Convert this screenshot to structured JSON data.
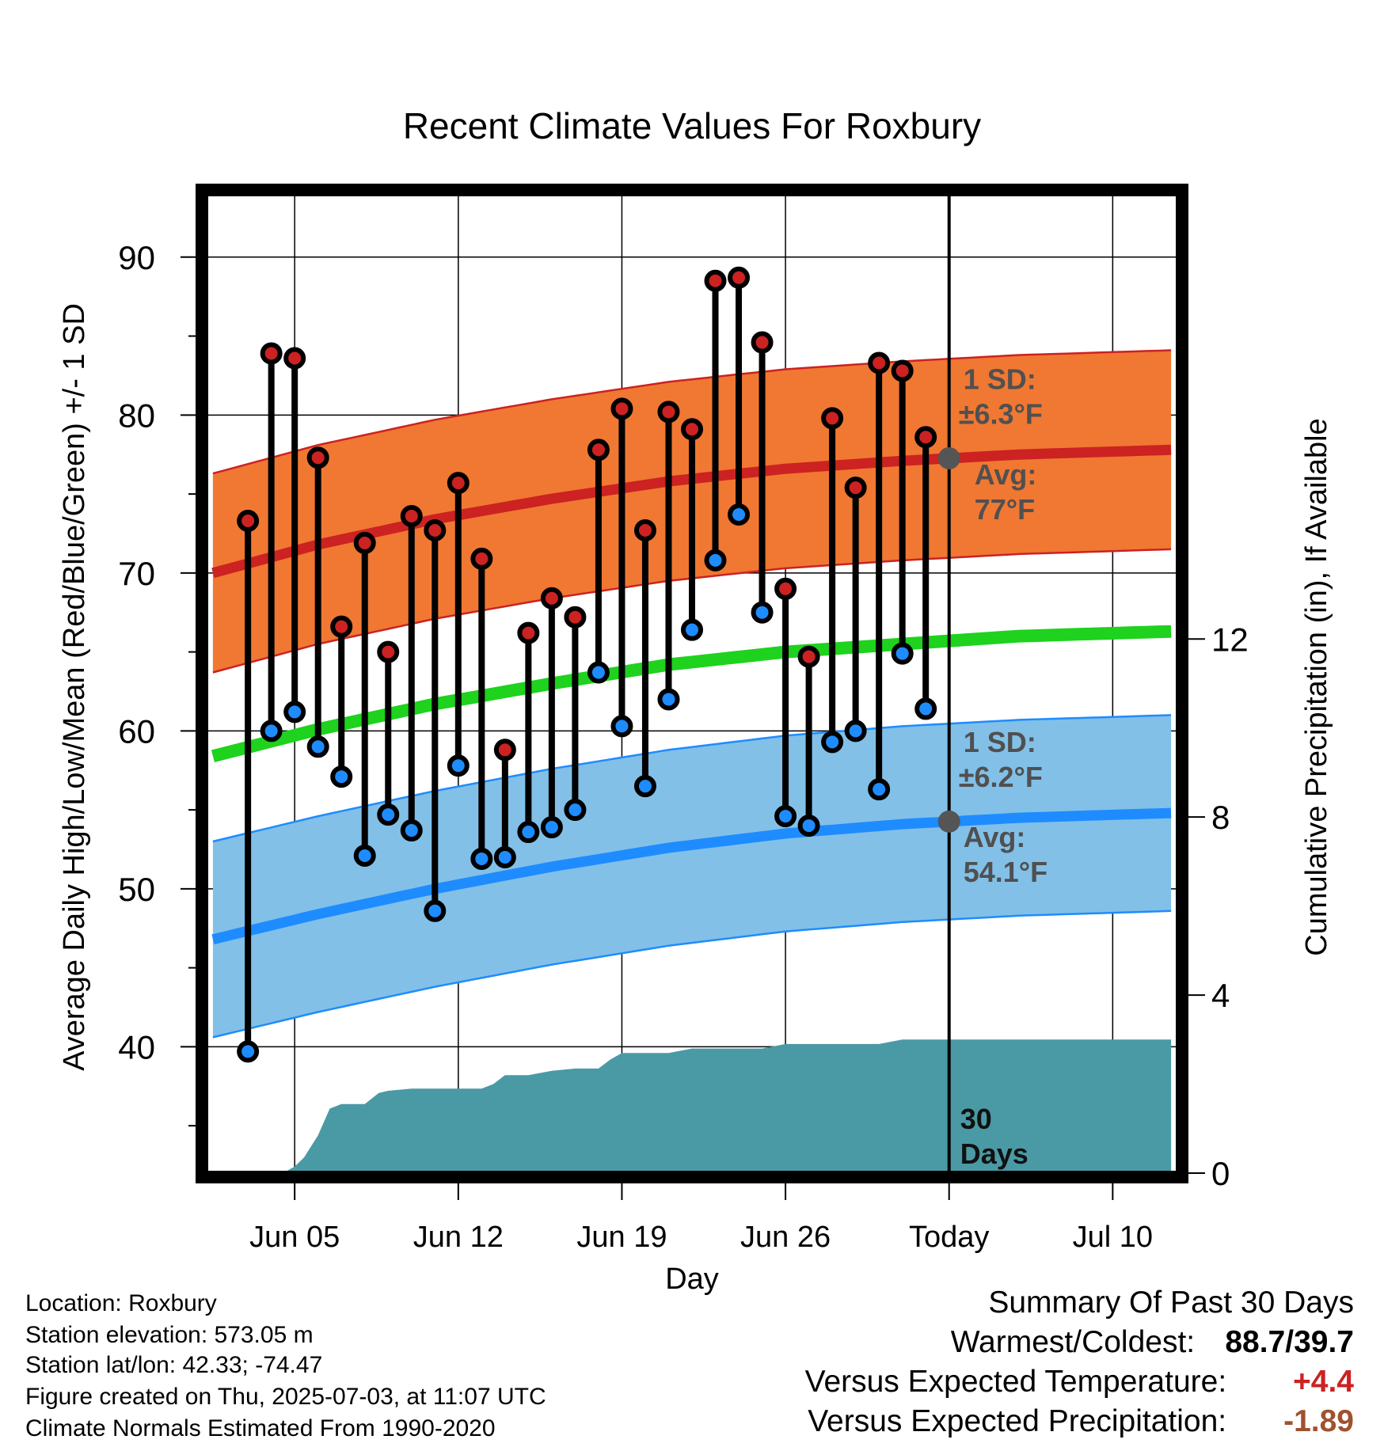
{
  "chart_data": {
    "type": "line",
    "title": "Recent Climate Values For Roxbury",
    "xlabel": "Day",
    "ylabel": "Average Daily High/Low/Mean (Red/Blue/Green) +/- 1 SD",
    "y2label": "Cumulative Precipitation (in), If Available",
    "ylim": [
      32,
      94
    ],
    "y2lim": [
      0,
      22
    ],
    "xlim": [
      0.2,
      41.8
    ],
    "yticks": [
      40,
      50,
      60,
      70,
      80,
      90
    ],
    "y2ticks": [
      0,
      4,
      8,
      12
    ],
    "xticks": [
      {
        "x": 4,
        "label": "Jun 05"
      },
      {
        "x": 11,
        "label": "Jun 12"
      },
      {
        "x": 18,
        "label": "Jun 19"
      },
      {
        "x": 25,
        "label": "Jun 26"
      },
      {
        "x": 32,
        "label": "Today"
      },
      {
        "x": 39,
        "label": "Jul 10"
      }
    ],
    "today_x": 32,
    "today_label": "30 Days",
    "days": [
      2,
      3,
      4,
      5,
      6,
      7,
      8,
      9,
      10,
      11,
      12,
      13,
      14,
      15,
      16,
      17,
      18,
      19,
      20,
      21,
      22,
      23,
      24,
      25,
      26,
      27,
      28,
      29,
      30,
      31
    ],
    "daily_high": [
      73.3,
      83.9,
      83.6,
      77.3,
      66.6,
      71.9,
      65.0,
      73.6,
      72.7,
      75.7,
      70.9,
      58.8,
      66.2,
      68.4,
      67.2,
      77.8,
      80.4,
      72.7,
      80.2,
      79.1,
      88.5,
      88.7,
      84.6,
      69.0,
      64.7,
      79.8,
      75.4,
      83.3,
      82.8,
      78.6
    ],
    "daily_low": [
      39.7,
      60.0,
      61.2,
      59.0,
      57.1,
      52.1,
      54.7,
      53.7,
      48.6,
      57.8,
      51.9,
      52.0,
      53.6,
      53.9,
      55.0,
      63.7,
      60.3,
      56.5,
      62.0,
      66.4,
      70.8,
      73.7,
      67.5,
      54.6,
      54.0,
      59.3,
      60.0,
      56.3,
      64.9,
      61.4
    ],
    "normal_x": [
      0.5,
      5,
      10,
      15,
      20,
      25,
      30,
      35,
      41.5
    ],
    "normal_high": [
      70.0,
      71.8,
      73.4,
      74.7,
      75.8,
      76.6,
      77.1,
      77.5,
      77.8
    ],
    "normal_low": [
      46.8,
      48.4,
      50.0,
      51.4,
      52.6,
      53.5,
      54.1,
      54.5,
      54.8
    ],
    "normal_mean": [
      58.4,
      60.1,
      61.7,
      63.0,
      64.2,
      65.0,
      65.5,
      66.0,
      66.3
    ],
    "high_sd": 6.3,
    "low_sd": 6.2,
    "precip_x": [
      0.5,
      3.5,
      4,
      4.4,
      5,
      5.5,
      6,
      7,
      7.6,
      8,
      9,
      10,
      10.5,
      11,
      12,
      12.5,
      13,
      14,
      15,
      16,
      17,
      17.5,
      18,
      19,
      20,
      21,
      22,
      23,
      24,
      25,
      26,
      27,
      28,
      29,
      30,
      31,
      32,
      33,
      34,
      35,
      41.5
    ],
    "precip_y": [
      0,
      0,
      0.15,
      0.35,
      0.85,
      1.45,
      1.55,
      1.55,
      1.8,
      1.85,
      1.9,
      1.9,
      1.9,
      1.9,
      1.9,
      2.0,
      2.2,
      2.2,
      2.3,
      2.35,
      2.35,
      2.55,
      2.7,
      2.7,
      2.7,
      2.8,
      2.8,
      2.8,
      2.8,
      2.9,
      2.9,
      2.9,
      2.9,
      2.9,
      3.0,
      3.0,
      3.0,
      3.0,
      3.0,
      3.0,
      3.0
    ],
    "annotations": {
      "high_sd_label": "1 SD:",
      "high_sd_value": "±6.3°F",
      "high_avg_label": "Avg:",
      "high_avg_value": "77°F",
      "low_sd_label": "1 SD:",
      "low_sd_value": "±6.2°F",
      "low_avg_label": "Avg:",
      "low_avg_value": "54.1°F",
      "days_line1": "30",
      "days_line2": "Days"
    },
    "colors": {
      "high": "#cc2222",
      "high_band": "#f07832",
      "low": "#1e8cff",
      "low_band": "#82c0e8",
      "mean": "#1ed21e",
      "precip": "#4a9aa5",
      "annotation": "#505050"
    }
  },
  "info": {
    "location": "Location: Roxbury",
    "elevation": "Station elevation: 573.05 m",
    "latlon": "Station lat/lon: 42.33; -74.47",
    "created": "Figure created on Thu, 2025-07-03, at 11:07 UTC",
    "normals": "Climate Normals Estimated From 1990-2020"
  },
  "summary": {
    "title": "Summary Of Past 30 Days",
    "warm_cold_label": "Warmest/Coldest:",
    "warm_cold_value": "88.7/39.7",
    "temp_label": "Versus Expected Temperature:",
    "temp_value": "+4.4",
    "temp_color": "#cc2222",
    "precip_label": "Versus Expected Precipitation:",
    "precip_value": "-1.89",
    "precip_color": "#a0522d"
  }
}
